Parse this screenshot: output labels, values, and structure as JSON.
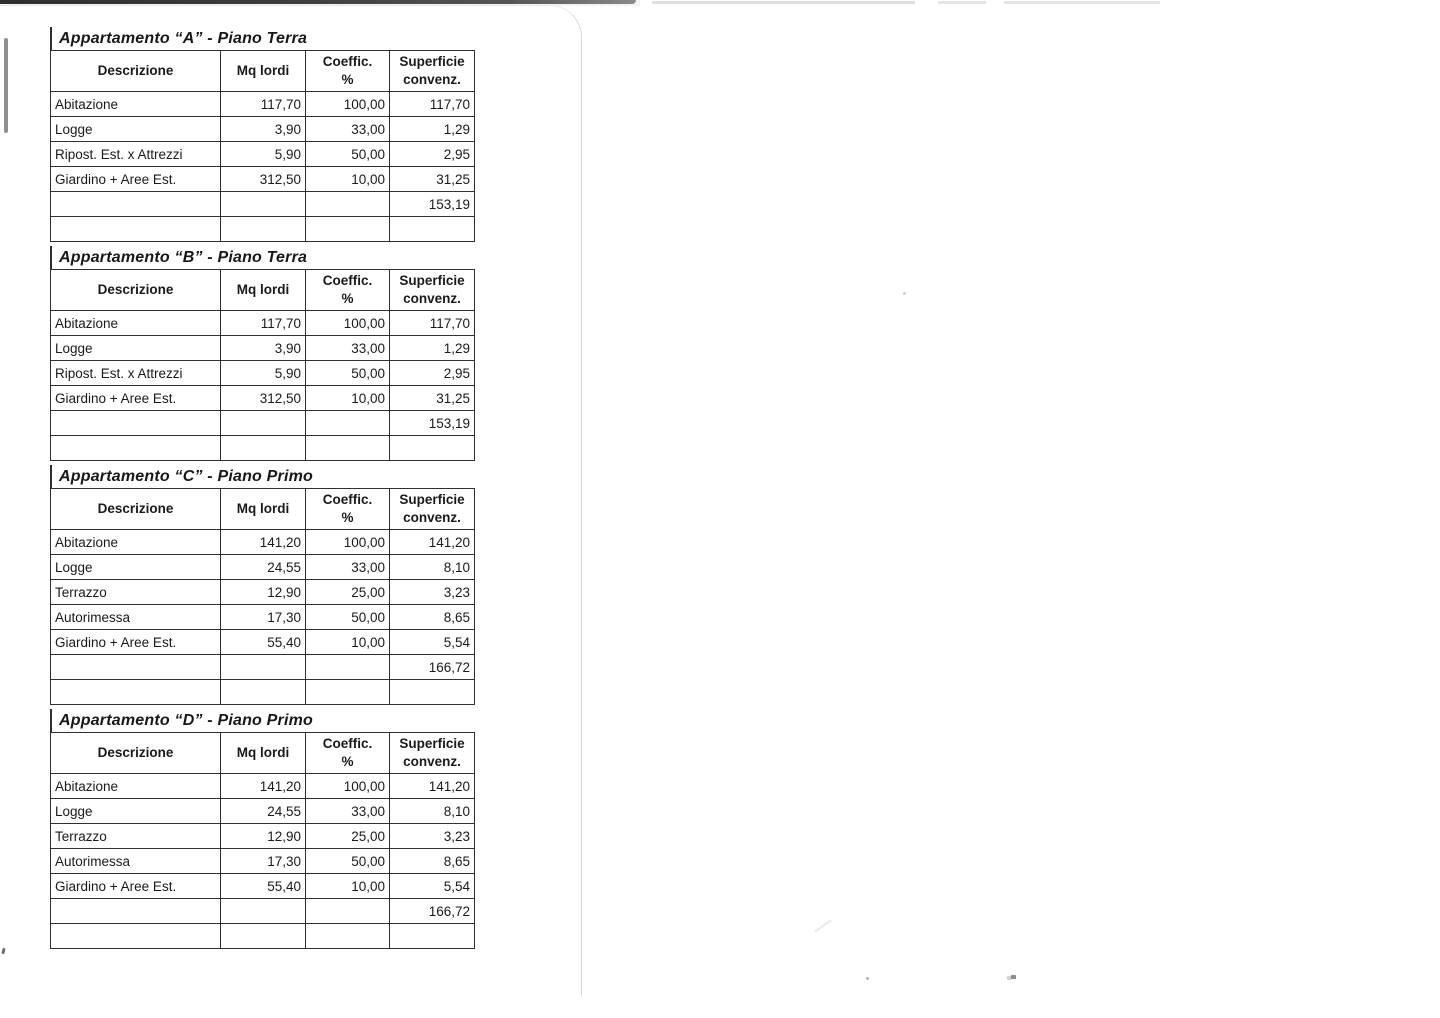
{
  "tables": [
    {
      "title": "Appartamento “A” - Piano Terra",
      "headers": [
        [
          "Descrizione"
        ],
        [
          "Mq lordi"
        ],
        [
          "Coeffic.",
          "%"
        ],
        [
          "Superficie",
          "convenz."
        ]
      ],
      "rows": [
        [
          "Abitazione",
          "117,70",
          "100,00",
          "117,70"
        ],
        [
          "Logge",
          "3,90",
          "33,00",
          "1,29"
        ],
        [
          "Ripost. Est. x Attrezzi",
          "5,90",
          "50,00",
          "2,95"
        ],
        [
          "Giardino + Aree Est.",
          "312,50",
          "10,00",
          "31,25"
        ],
        [
          "",
          "",
          "",
          "153,19"
        ],
        [
          "",
          "",
          "",
          ""
        ]
      ]
    },
    {
      "title": "Appartamento “B” - Piano Terra",
      "headers": [
        [
          "Descrizione"
        ],
        [
          "Mq lordi"
        ],
        [
          "Coeffic.",
          "%"
        ],
        [
          "Superficie",
          "convenz."
        ]
      ],
      "rows": [
        [
          "Abitazione",
          "117,70",
          "100,00",
          "117,70"
        ],
        [
          "Logge",
          "3,90",
          "33,00",
          "1,29"
        ],
        [
          "Ripost. Est. x Attrezzi",
          "5,90",
          "50,00",
          "2,95"
        ],
        [
          "Giardino + Aree Est.",
          "312,50",
          "10,00",
          "31,25"
        ],
        [
          "",
          "",
          "",
          "153,19"
        ],
        [
          "",
          "",
          "",
          ""
        ]
      ]
    },
    {
      "title": "Appartamento “C” - Piano Primo",
      "headers": [
        [
          "Descrizione"
        ],
        [
          "Mq lordi"
        ],
        [
          "Coeffic.",
          "%"
        ],
        [
          "Superficie",
          "convenz."
        ]
      ],
      "rows": [
        [
          "Abitazione",
          "141,20",
          "100,00",
          "141,20"
        ],
        [
          "Logge",
          "24,55",
          "33,00",
          "8,10"
        ],
        [
          "Terrazzo",
          "12,90",
          "25,00",
          "3,23"
        ],
        [
          "Autorimessa",
          "17,30",
          "50,00",
          "8,65"
        ],
        [
          "Giardino + Aree Est.",
          "55,40",
          "10,00",
          "5,54"
        ],
        [
          "",
          "",
          "",
          "166,72"
        ],
        [
          "",
          "",
          "",
          ""
        ]
      ]
    },
    {
      "title": "Appartamento “D” - Piano Primo",
      "headers": [
        [
          "Descrizione"
        ],
        [
          "Mq lordi"
        ],
        [
          "Coeffic.",
          "%"
        ],
        [
          "Superficie",
          "convenz."
        ]
      ],
      "rows": [
        [
          "Abitazione",
          "141,20",
          "100,00",
          "141,20"
        ],
        [
          "Logge",
          "24,55",
          "33,00",
          "8,10"
        ],
        [
          "Terrazzo",
          "12,90",
          "25,00",
          "3,23"
        ],
        [
          "Autorimessa",
          "17,30",
          "50,00",
          "8,65"
        ],
        [
          "Giardino + Aree Est.",
          "55,40",
          "10,00",
          "5,54"
        ],
        [
          "",
          "",
          "",
          "166,72"
        ],
        [
          "",
          "",
          "",
          ""
        ]
      ]
    }
  ]
}
